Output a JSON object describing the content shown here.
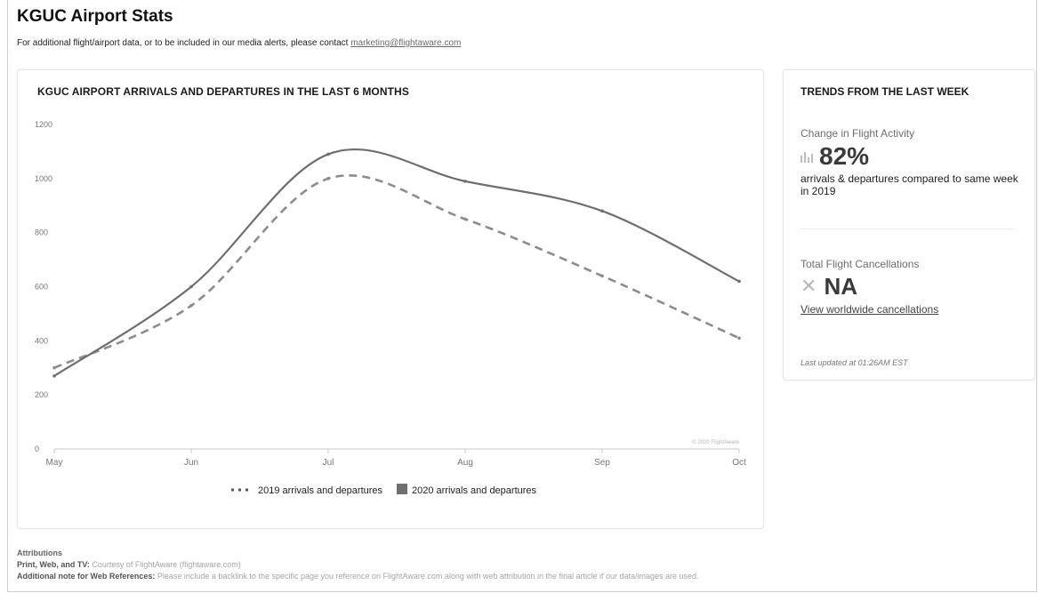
{
  "page": {
    "title": "KGUC Airport Stats",
    "contact_text": "For additional flight/airport data, or to be included in our media alerts, please contact",
    "contact_email": "marketing@flightaware.com"
  },
  "chart_card": {
    "title": "KGUC AIRPORT ARRIVALS AND DEPARTURES IN THE LAST 6 MONTHS",
    "watermark": "© 2020 FlightAware"
  },
  "chart_data": {
    "type": "line",
    "categories": [
      "May",
      "Jun",
      "Jul",
      "Aug",
      "Sep",
      "Oct"
    ],
    "ylim": [
      0,
      1200
    ],
    "yticks": [
      0,
      200,
      400,
      600,
      800,
      1000,
      1200
    ],
    "grid": false,
    "legend_position": "bottom",
    "series": [
      {
        "name": "2019 arrivals and departures",
        "style": "dashed",
        "color": "#8c8c8c",
        "values": [
          300,
          530,
          1000,
          850,
          640,
          410
        ]
      },
      {
        "name": "2020 arrivals and departures",
        "style": "solid",
        "color": "#6f6f6f",
        "values": [
          270,
          600,
          1090,
          990,
          880,
          620
        ]
      }
    ],
    "title": "KGUC AIRPORT ARRIVALS AND DEPARTURES IN THE LAST 6 MONTHS",
    "xlabel": "",
    "ylabel": ""
  },
  "trends": {
    "title": "TRENDS FROM THE LAST WEEK",
    "activity_label": "Change in Flight Activity",
    "activity_value": "82%",
    "activity_desc": "arrivals & departures compared to same week in 2019",
    "cancellations_label": "Total Flight Cancellations",
    "cancellations_value": "NA",
    "cancellations_link": "View worldwide cancellations",
    "last_updated": "Last updated at 01:26AM EST"
  },
  "attributions": {
    "heading": "Attributions",
    "print_label": "Print, Web, and TV:",
    "print_text": "Courtesy of FlightAware (flightaware.com)",
    "web_label": "Additional note for Web References:",
    "web_text": "Please include a backlink to the specific page you reference on FlightAware.com along with web attribution in the final article if our data/images are used."
  },
  "icons": {
    "activity": "bar-chart-icon",
    "cancellations": "x-icon"
  }
}
